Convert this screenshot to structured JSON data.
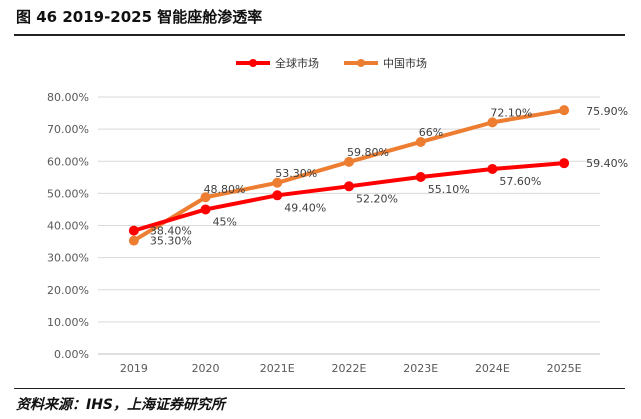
{
  "header": {
    "title": "图 46 2019-2025 智能座舱渗透率"
  },
  "footer": {
    "source": "资料来源：IHS，上海证券研究所"
  },
  "chart_data": {
    "type": "line",
    "categories": [
      "2019",
      "2020",
      "2021E",
      "2022E",
      "2023E",
      "2024E",
      "2025E"
    ],
    "ylim": [
      0,
      80
    ],
    "yticks": [
      "0.00%",
      "10.00%",
      "20.00%",
      "30.00%",
      "40.00%",
      "50.00%",
      "60.00%",
      "70.00%",
      "80.00%"
    ],
    "grid": true,
    "legend_position": "top",
    "series": [
      {
        "name": "全球市场",
        "color": "#ff0000",
        "values": [
          38.4,
          45,
          49.4,
          52.2,
          55.1,
          57.6,
          59.4
        ],
        "labels": [
          "38.40%",
          "45%",
          "49.40%",
          "52.20%",
          "55.10%",
          "57.60%",
          "59.40%"
        ]
      },
      {
        "name": "中国市场",
        "color": "#ed7d31",
        "values": [
          35.3,
          48.8,
          53.3,
          59.8,
          66,
          72.1,
          75.9
        ],
        "labels": [
          "35.30%",
          "48.80%",
          "53.30%",
          "59.80%",
          "66%",
          "72.10%",
          "75.90%"
        ]
      }
    ]
  }
}
